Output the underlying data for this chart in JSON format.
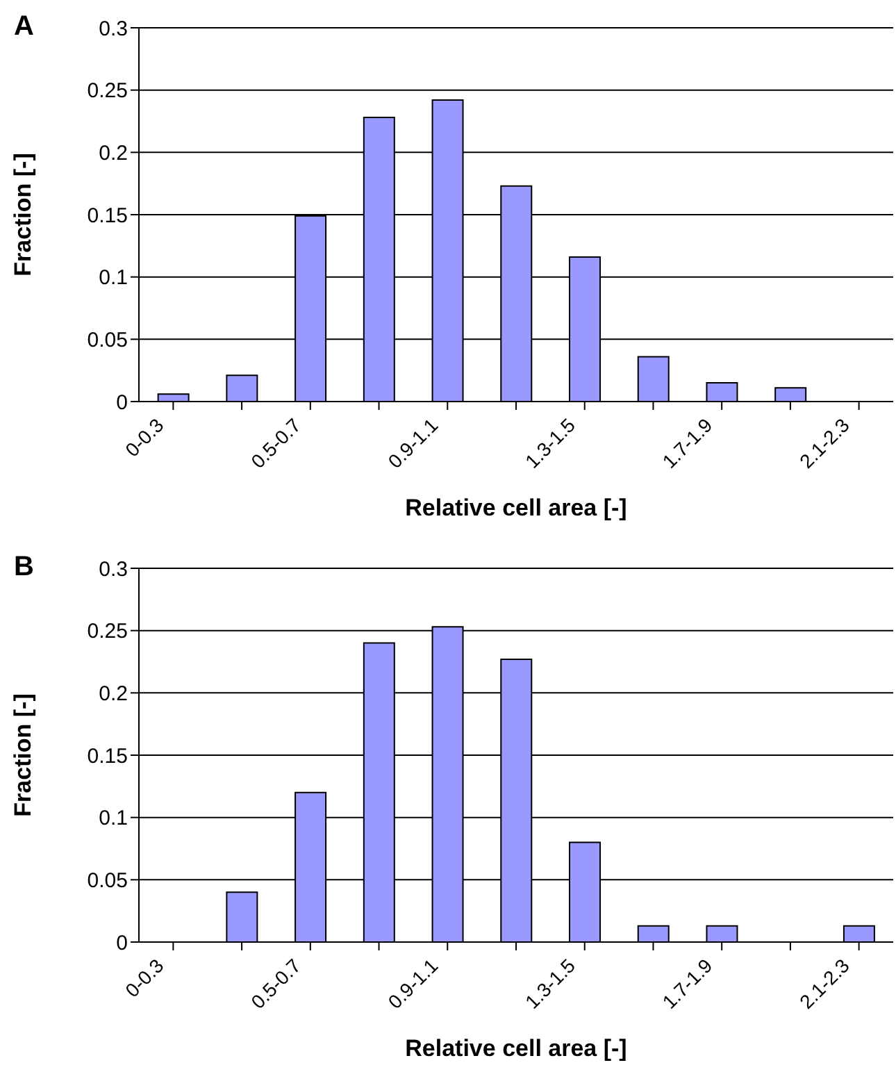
{
  "chart_data": [
    {
      "type": "bar",
      "title": "A",
      "xlabel": "Relative cell area [-]",
      "ylabel": "Fraction [-]",
      "categories": [
        "0-0.3",
        null,
        "0.5-0.7",
        null,
        "0.9-1.1",
        null,
        "1.3-1.5",
        null,
        "1.7-1.9",
        null,
        "2.1-2.3"
      ],
      "values": [
        0.006,
        0.021,
        0.149,
        0.228,
        0.242,
        0.173,
        0.116,
        0.036,
        0.015,
        0.011,
        0
      ],
      "color": "#9999ff",
      "ylim": [
        0,
        0.3
      ],
      "yticks": [
        0,
        0.05,
        0.1,
        0.15,
        0.2,
        0.25,
        0.3
      ],
      "grid": "y"
    },
    {
      "type": "bar",
      "title": "B",
      "xlabel": "Relative cell area [-]",
      "ylabel": "Fraction [-]",
      "categories": [
        "0-0.3",
        null,
        "0.5-0.7",
        null,
        "0.9-1.1",
        null,
        "1.3-1.5",
        null,
        "1.7-1.9",
        null,
        "2.1-2.3"
      ],
      "values": [
        0,
        0.04,
        0.12,
        0.24,
        0.253,
        0.227,
        0.08,
        0.013,
        0.013,
        0,
        0.013
      ],
      "color": "#9999ff",
      "ylim": [
        0,
        0.3
      ],
      "yticks": [
        0,
        0.05,
        0.1,
        0.15,
        0.2,
        0.25,
        0.3
      ],
      "grid": "y"
    }
  ]
}
